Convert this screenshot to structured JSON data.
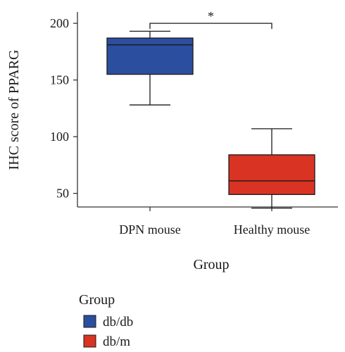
{
  "chart_data": {
    "type": "boxplot",
    "xlabel": "Group",
    "ylabel": "IHC score of PPARG",
    "ylim": [
      38,
      210
    ],
    "yticks": [
      50,
      100,
      150,
      200
    ],
    "categories": [
      "DPN mouse",
      "Healthy mouse"
    ],
    "boxes": [
      {
        "category": "DPN mouse",
        "group": "db/db",
        "color": "#2b4f9e",
        "whisker_low": 128,
        "q1": 155,
        "median": 181,
        "q3": 187,
        "whisker_high": 193
      },
      {
        "category": "Healthy mouse",
        "group": "db/m",
        "color": "#d93324",
        "whisker_low": 37,
        "q1": 49,
        "median": 61,
        "q3": 84,
        "whisker_high": 107
      }
    ],
    "significance": {
      "label": "*",
      "between": [
        "DPN mouse",
        "Healthy mouse"
      ],
      "y": 200
    },
    "legend": {
      "title": "Group",
      "position": "bottom-left",
      "entries": [
        {
          "label": "db/db",
          "color": "#2b4f9e"
        },
        {
          "label": "db/m",
          "color": "#d93324"
        }
      ]
    }
  }
}
